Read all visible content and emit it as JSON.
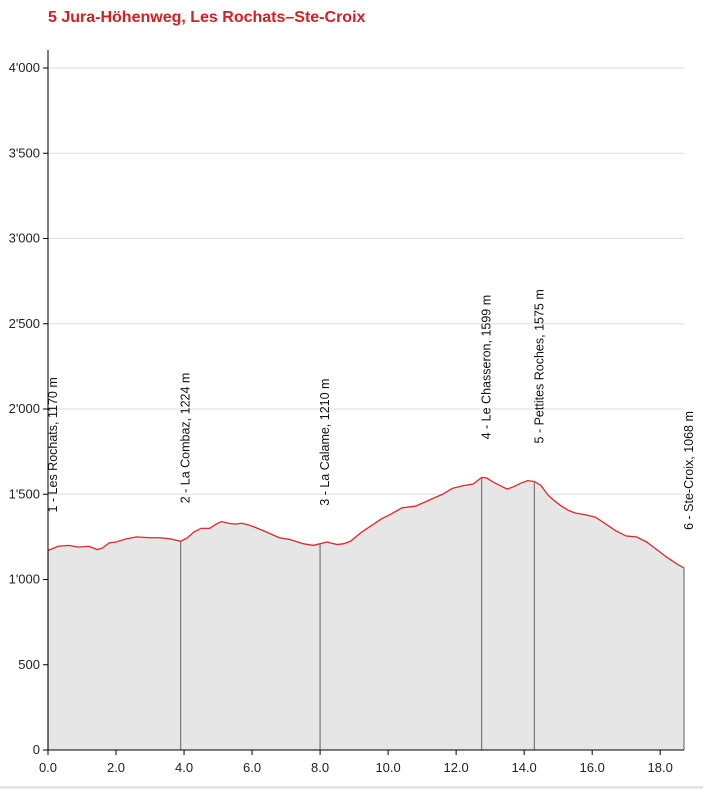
{
  "page": {
    "title": "5 Jura-Höhenweg, Les Rochats–Ste-Croix"
  },
  "colors": {
    "title": "#d41f26",
    "profile_line": "#e3262a",
    "profile_fill": "#e6e6e6",
    "waypoint_line": "#777777",
    "grid": "#dddddd",
    "axis": "#000000"
  },
  "chart_data": {
    "type": "area",
    "title": "5 Jura-Höhenweg, Les Rochats–Ste-Croix",
    "xlabel": "",
    "ylabel": "",
    "xlim": [
      0,
      18.7
    ],
    "ylim": [
      0,
      4000
    ],
    "grid": "horizontal",
    "x_ticks": [
      {
        "value": 0,
        "label": "0.0"
      },
      {
        "value": 2,
        "label": "2.0"
      },
      {
        "value": 4,
        "label": "4.0"
      },
      {
        "value": 6,
        "label": "6.0"
      },
      {
        "value": 8,
        "label": "8.0"
      },
      {
        "value": 10,
        "label": "10.0"
      },
      {
        "value": 12,
        "label": "12.0"
      },
      {
        "value": 14,
        "label": "14.0"
      },
      {
        "value": 16,
        "label": "16.0"
      },
      {
        "value": 18,
        "label": "18.0"
      }
    ],
    "y_ticks": [
      {
        "value": 0,
        "label": "0"
      },
      {
        "value": 500,
        "label": "500"
      },
      {
        "value": 1000,
        "label": "1'000"
      },
      {
        "value": 1500,
        "label": "1'500"
      },
      {
        "value": 2000,
        "label": "2'000"
      },
      {
        "value": 2500,
        "label": "2'500"
      },
      {
        "value": 3000,
        "label": "3'000"
      },
      {
        "value": 3500,
        "label": "3'500"
      },
      {
        "value": 4000,
        "label": "4'000"
      }
    ],
    "series": [
      {
        "x": [
          0,
          0.3,
          0.6,
          0.9,
          1.2,
          1.45,
          1.6,
          1.8,
          2.0,
          2.3,
          2.6,
          3.0,
          3.3,
          3.6,
          3.9,
          4.1,
          4.3,
          4.5,
          4.75,
          4.95,
          5.1,
          5.3,
          5.5,
          5.7,
          5.9,
          6.1,
          6.4,
          6.8,
          7.1,
          7.5,
          7.8,
          8.0,
          8.2,
          8.5,
          8.7,
          8.9,
          9.2,
          9.5,
          9.8,
          10.1,
          10.4,
          10.8,
          11.2,
          11.6,
          11.9,
          12.2,
          12.5,
          12.6,
          12.75,
          12.9,
          13.1,
          13.3,
          13.5,
          13.7,
          13.9,
          14.1,
          14.3,
          14.5,
          14.7,
          14.9,
          15.1,
          15.3,
          15.5,
          15.8,
          16.1,
          16.4,
          16.7,
          17.0,
          17.3,
          17.6,
          17.9,
          18.2,
          18.5,
          18.7
        ],
        "y": [
          1170,
          1195,
          1200,
          1190,
          1195,
          1175,
          1185,
          1215,
          1220,
          1238,
          1250,
          1245,
          1245,
          1238,
          1224,
          1245,
          1280,
          1300,
          1300,
          1325,
          1340,
          1330,
          1325,
          1330,
          1320,
          1305,
          1280,
          1245,
          1235,
          1210,
          1200,
          1210,
          1220,
          1205,
          1210,
          1225,
          1275,
          1315,
          1355,
          1385,
          1420,
          1430,
          1465,
          1500,
          1535,
          1550,
          1560,
          1575,
          1599,
          1595,
          1570,
          1550,
          1530,
          1545,
          1565,
          1580,
          1575,
          1550,
          1495,
          1460,
          1430,
          1405,
          1390,
          1380,
          1365,
          1325,
          1285,
          1255,
          1250,
          1220,
          1175,
          1130,
          1090,
          1068
        ]
      }
    ],
    "waypoints": [
      {
        "km": 0.0,
        "label": "1 - Les Rochats, 1170 m",
        "elevation": 1170
      },
      {
        "km": 3.9,
        "label": "2 - La Combaz, 1224 m",
        "elevation": 1224
      },
      {
        "km": 8.0,
        "label": "3 - La Calame, 1210 m",
        "elevation": 1210
      },
      {
        "km": 12.75,
        "label": "4 - Le Chasseron, 1599 m",
        "elevation": 1599
      },
      {
        "km": 14.3,
        "label": "5 - Pettites Roches, 1575 m",
        "elevation": 1575
      },
      {
        "km": 18.7,
        "label": "6 - Ste-Croix, 1068 m",
        "elevation": 1068
      }
    ]
  }
}
